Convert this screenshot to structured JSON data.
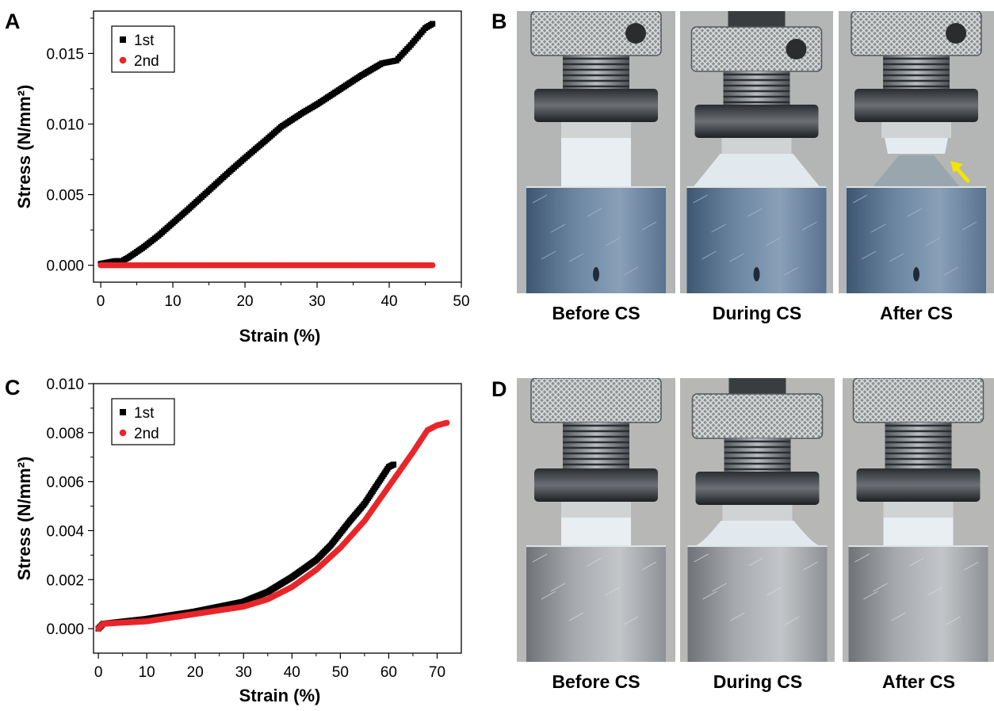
{
  "panels": {
    "a": "A",
    "b": "B",
    "c": "C",
    "d": "D"
  },
  "colors": {
    "series1": "#000000",
    "series2": "#e8262a",
    "arrow": "#f4e400"
  },
  "chart_data": [
    {
      "type": "scatter",
      "title": "",
      "xlabel": "Strain (%)",
      "ylabel": "Stress (N/mm²)",
      "xlim": [
        -1,
        50
      ],
      "ylim": [
        -0.0012,
        0.018
      ],
      "xticks": [
        "0",
        "10",
        "20",
        "30",
        "40",
        "50"
      ],
      "xtick_values": [
        0,
        10,
        20,
        30,
        40,
        50
      ],
      "yticks": [
        "0.000",
        "0.005",
        "0.010",
        "0.015"
      ],
      "ytick_values": [
        0,
        0.005,
        0.01,
        0.015
      ],
      "legend_position": "top-left",
      "grid": false,
      "series": [
        {
          "name": "1st",
          "points": [
            [
              0,
              0.0001
            ],
            [
              2,
              0.0003
            ],
            [
              3,
              0.0003
            ],
            [
              4,
              0.0006
            ],
            [
              6,
              0.0013
            ],
            [
              8,
              0.0021
            ],
            [
              10,
              0.003
            ],
            [
              12,
              0.0039
            ],
            [
              15,
              0.0053
            ],
            [
              18,
              0.0067
            ],
            [
              20,
              0.0076
            ],
            [
              23,
              0.0089
            ],
            [
              25,
              0.0098
            ],
            [
              28,
              0.0108
            ],
            [
              30,
              0.0114
            ],
            [
              33,
              0.0124
            ],
            [
              36,
              0.0134
            ],
            [
              39,
              0.0143
            ],
            [
              41,
              0.0145
            ],
            [
              43,
              0.0156
            ],
            [
              45,
              0.0168
            ],
            [
              46,
              0.0171
            ]
          ]
        },
        {
          "name": "2nd",
          "points": [
            [
              0,
              0.0
            ],
            [
              46,
              0.0
            ]
          ]
        }
      ]
    },
    {
      "type": "scatter",
      "title": "",
      "xlabel": "Strain (%)",
      "ylabel": "Stress (N/mm²)",
      "xlim": [
        -1,
        75
      ],
      "ylim": [
        -0.001,
        0.01
      ],
      "xticks": [
        "0",
        "10",
        "20",
        "30",
        "40",
        "50",
        "60",
        "70"
      ],
      "xtick_values": [
        0,
        10,
        20,
        30,
        40,
        50,
        60,
        70
      ],
      "yticks": [
        "0.000",
        "0.002",
        "0.004",
        "0.006",
        "0.008",
        "0.010"
      ],
      "ytick_values": [
        0,
        0.002,
        0.004,
        0.006,
        0.008,
        0.01
      ],
      "legend_position": "top-left",
      "grid": false,
      "series": [
        {
          "name": "1st",
          "points": [
            [
              0,
              0.0
            ],
            [
              1,
              0.0002
            ],
            [
              10,
              0.0004
            ],
            [
              20,
              0.0007
            ],
            [
              25,
              0.0009
            ],
            [
              30,
              0.0011
            ],
            [
              35,
              0.0015
            ],
            [
              40,
              0.0021
            ],
            [
              45,
              0.0028
            ],
            [
              48,
              0.0034
            ],
            [
              50,
              0.0039
            ],
            [
              52,
              0.0044
            ],
            [
              55,
              0.0051
            ],
            [
              58,
              0.006
            ],
            [
              60,
              0.0066
            ],
            [
              61,
              0.0067
            ]
          ]
        },
        {
          "name": "2nd",
          "points": [
            [
              0,
              0.0
            ],
            [
              1,
              0.0002
            ],
            [
              10,
              0.0003
            ],
            [
              20,
              0.0006
            ],
            [
              30,
              0.0009
            ],
            [
              35,
              0.0012
            ],
            [
              40,
              0.0017
            ],
            [
              45,
              0.0024
            ],
            [
              50,
              0.0033
            ],
            [
              55,
              0.0044
            ],
            [
              60,
              0.0058
            ],
            [
              65,
              0.0072
            ],
            [
              68,
              0.0081
            ],
            [
              70,
              0.0083
            ],
            [
              72,
              0.0084
            ]
          ]
        }
      ]
    }
  ],
  "photos": {
    "row1": [
      {
        "caption": "Before CS",
        "state": "before",
        "arrow": false,
        "cracked": false
      },
      {
        "caption": "During CS",
        "state": "during",
        "arrow": false,
        "cracked": false
      },
      {
        "caption": "After CS",
        "state": "after",
        "arrow": true,
        "cracked": true
      }
    ],
    "row2": [
      {
        "caption": "Before CS",
        "state": "before",
        "arrow": false,
        "cracked": false
      },
      {
        "caption": "During CS",
        "state": "during",
        "arrow": false,
        "cracked": false
      },
      {
        "caption": "After CS",
        "state": "after",
        "arrow": false,
        "cracked": false
      }
    ]
  }
}
